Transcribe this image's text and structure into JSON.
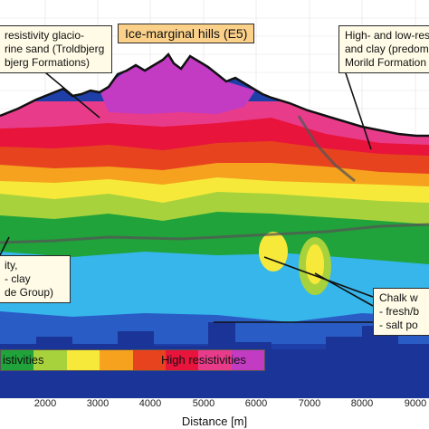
{
  "title": "Ice-marginal hills (E5)",
  "callouts": {
    "left_top": [
      "resistivity glacio-",
      "rine sand (Troldbjerg",
      "bjerg Formations)"
    ],
    "right_top": [
      "High- and low-resi",
      "and clay (predomi",
      "Morild Formation"
    ],
    "left_mid": [
      "ity,",
      "- clay",
      "de Group)"
    ],
    "right_mid": [
      "Chalk w",
      "- fresh/b",
      "- salt po"
    ]
  },
  "scale": {
    "low_label": "istivities",
    "high_label": "High resistivities",
    "colors": [
      "#1fa33a",
      "#a8d23c",
      "#f7e93a",
      "#f6a21e",
      "#e8431f",
      "#e8143c",
      "#e83c8a",
      "#c23bc2"
    ]
  },
  "axis": {
    "label": "Distance [m]",
    "ticks": [
      "2000",
      "3000",
      "4000",
      "5000",
      "6000",
      "7000",
      "8000",
      "9000"
    ]
  }
}
